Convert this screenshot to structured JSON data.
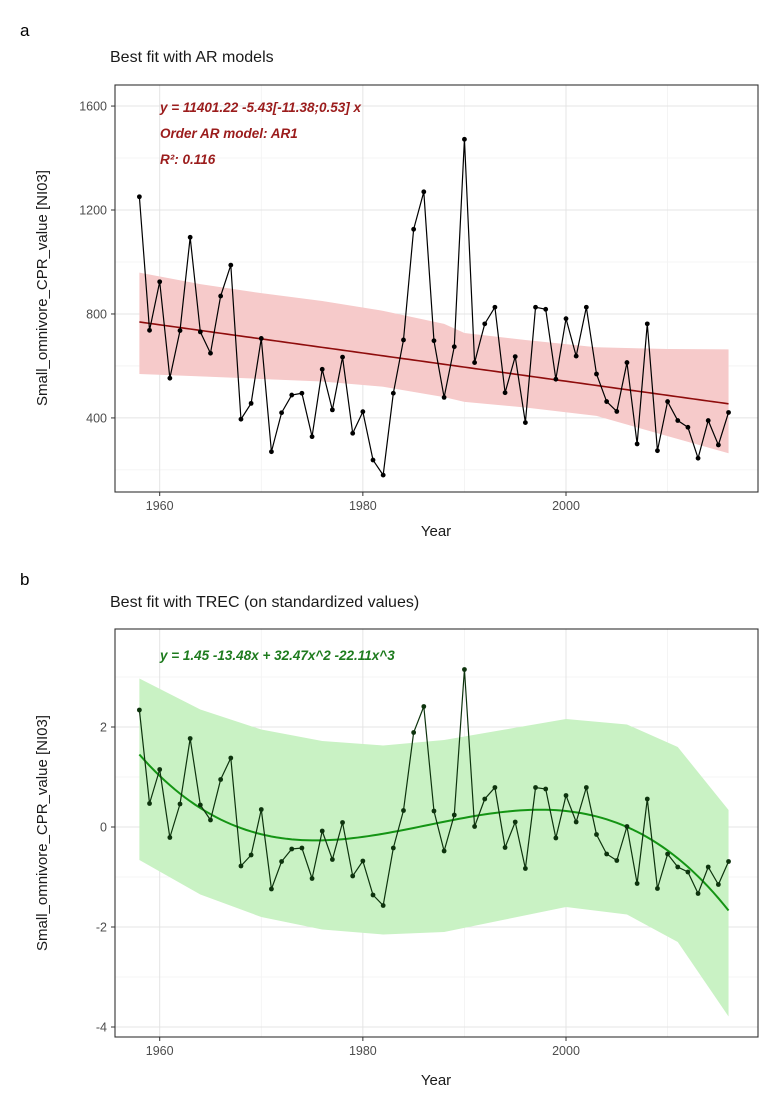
{
  "figure": {
    "panels": [
      {
        "letter": "a"
      },
      {
        "letter": "b"
      }
    ]
  },
  "chart_data": [
    {
      "id": "a",
      "type": "line",
      "title": "Best fit with AR models",
      "xlabel": "Year",
      "ylabel": "Small_omnivore_CPR_value [NI03]",
      "annotation": {
        "lines": [
          "y = 11401.22  -5.43[-11.38;0.53] x",
          "Order AR model: AR1",
          "R²: 0.116"
        ]
      },
      "x": [
        1958,
        1959,
        1960,
        1961,
        1962,
        1963,
        1964,
        1965,
        1966,
        1967,
        1968,
        1969,
        1970,
        1971,
        1972,
        1973,
        1974,
        1975,
        1976,
        1977,
        1978,
        1979,
        1980,
        1981,
        1982,
        1983,
        1984,
        1985,
        1986,
        1987,
        1988,
        1989,
        1990,
        1991,
        1992,
        1993,
        1994,
        1995,
        1996,
        1997,
        1998,
        1999,
        2000,
        2001,
        2002,
        2003,
        2004,
        2005,
        2006,
        2007,
        2008,
        2009,
        2010,
        2011,
        2012,
        2013,
        2014,
        2015,
        2016
      ],
      "values": [
        1251,
        737,
        924,
        553,
        736,
        1095,
        731,
        649,
        869,
        988,
        395,
        456,
        706,
        270,
        420,
        488,
        495,
        328,
        587,
        431,
        634,
        341,
        424,
        238,
        180,
        495,
        700,
        1126,
        1270,
        697,
        479,
        674,
        1472,
        613,
        762,
        826,
        497,
        636,
        382,
        826,
        818,
        549,
        782,
        638,
        826,
        569,
        463,
        425,
        613,
        300,
        762,
        274,
        463,
        390,
        364,
        245,
        390,
        296,
        421
      ],
      "fit": {
        "type": "linear",
        "intercept": 11401.22,
        "slope": -5.43,
        "slope_ci": "[-11.38;0.53]",
        "ar_order": "AR1",
        "r_squared": 0.116
      },
      "band": {
        "years": [
          1958,
          1964,
          1970,
          1976,
          1982,
          1988,
          1990,
          1996,
          2003,
          2010,
          2016
        ],
        "upper": [
          959,
          915,
          880,
          850,
          812,
          762,
          727,
          700,
          672,
          665,
          664
        ],
        "lower": [
          569,
          560,
          550,
          540,
          520,
          480,
          462,
          440,
          408,
          330,
          264
        ]
      },
      "x_ticks": [
        1960,
        1980,
        2000
      ],
      "x_minor": [
        1970,
        1990,
        2010
      ],
      "y_ticks": [
        1600,
        1200,
        800,
        400
      ],
      "y_minor": [
        1400,
        1000,
        600,
        200
      ],
      "xlim": [
        1955.6,
        2018.9
      ],
      "ylim": [
        115,
        1681
      ],
      "colors": {
        "series": "#000000",
        "points": "#000000",
        "fit": "#8e0c0c",
        "band": "#f6caca",
        "annotation": "#9b1c1c"
      }
    },
    {
      "id": "b",
      "type": "line",
      "title": "Best fit with TREC (on standardized values)",
      "xlabel": "Year",
      "ylabel": "Small_omnivore_CPR_value [NI03]",
      "annotation": {
        "lines": [
          "y =  1.45  -13.48x  + 32.47x^2  -22.11x^3"
        ]
      },
      "x": [
        1958,
        1959,
        1960,
        1961,
        1962,
        1963,
        1964,
        1965,
        1966,
        1967,
        1968,
        1969,
        1970,
        1971,
        1972,
        1973,
        1974,
        1975,
        1976,
        1977,
        1978,
        1979,
        1980,
        1981,
        1982,
        1983,
        1984,
        1985,
        1986,
        1987,
        1988,
        1989,
        1990,
        1991,
        1992,
        1993,
        1994,
        1995,
        1996,
        1997,
        1998,
        1999,
        2000,
        2001,
        2002,
        2003,
        2004,
        2005,
        2006,
        2007,
        2008,
        2009,
        2010,
        2011,
        2012,
        2013,
        2014,
        2015,
        2016
      ],
      "values": [
        2.34,
        0.47,
        1.15,
        -0.21,
        0.46,
        1.77,
        0.44,
        0.14,
        0.95,
        1.38,
        -0.78,
        -0.56,
        0.35,
        -1.24,
        -0.69,
        -0.44,
        -0.42,
        -1.03,
        -0.08,
        -0.65,
        0.09,
        -0.98,
        -0.68,
        -1.36,
        -1.57,
        -0.42,
        0.33,
        1.89,
        2.41,
        0.32,
        -0.48,
        0.24,
        3.15,
        0.01,
        0.56,
        0.79,
        -0.41,
        0.1,
        -0.83,
        0.79,
        0.76,
        -0.22,
        0.63,
        0.1,
        0.79,
        -0.15,
        -0.54,
        -0.67,
        0.01,
        -1.13,
        0.56,
        -1.23,
        -0.54,
        -0.8,
        -0.9,
        -1.33,
        -0.8,
        -1.15,
        -0.69
      ],
      "fit": {
        "type": "cubic",
        "coefficients": [
          1.45,
          -13.48,
          32.47,
          -22.11
        ],
        "x_norm_start": 1958,
        "x_norm_span": 58
      },
      "band": {
        "years": [
          1958,
          1964,
          1970,
          1976,
          1982,
          1988,
          1994,
          2000,
          2006,
          2011,
          2016
        ],
        "upper": [
          2.97,
          2.35,
          1.95,
          1.72,
          1.63,
          1.74,
          1.95,
          2.16,
          2.05,
          1.6,
          0.34
        ],
        "lower": [
          -0.66,
          -1.35,
          -1.8,
          -2.05,
          -2.15,
          -2.1,
          -1.85,
          -1.6,
          -1.75,
          -2.3,
          -3.79
        ]
      },
      "x_ticks": [
        1960,
        1980,
        2000
      ],
      "x_minor": [
        1970,
        1990,
        2010
      ],
      "y_ticks": [
        2,
        0,
        -2,
        -4
      ],
      "y_minor": [
        3,
        1,
        -1,
        -3
      ],
      "xlim": [
        1955.6,
        2018.9
      ],
      "ylim": [
        -4.2,
        3.96
      ],
      "colors": {
        "series": "#0d330d",
        "points": "#0d330d",
        "fit": "#149414",
        "band": "#c9f2c4",
        "annotation": "#1e7b1e"
      }
    }
  ]
}
